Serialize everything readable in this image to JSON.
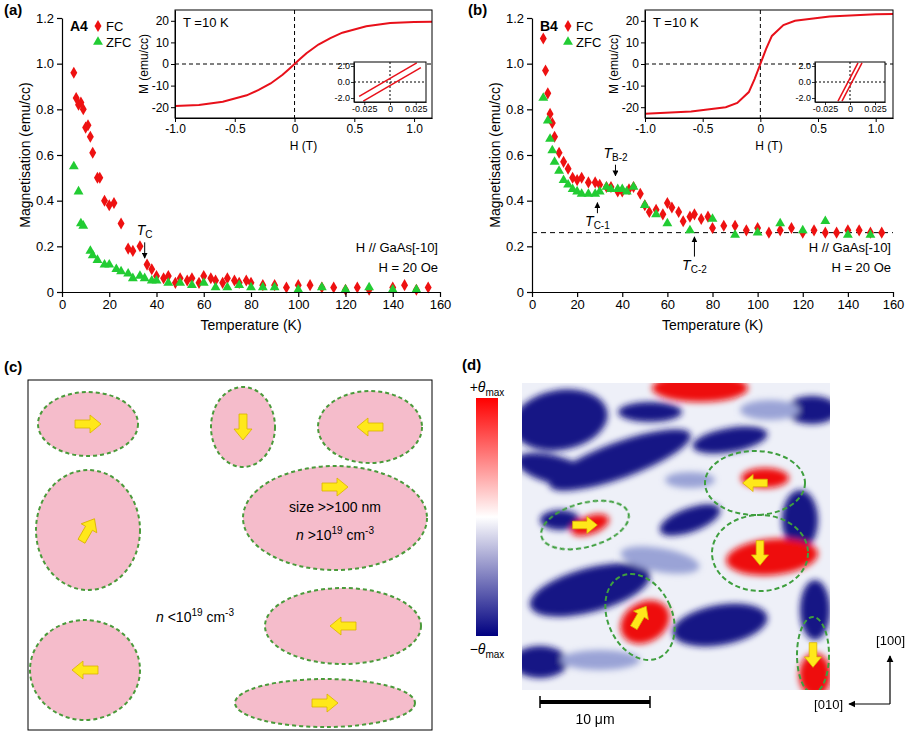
{
  "chart_data": [
    {
      "type": "scatter",
      "panel": "(a)",
      "sample": "A4",
      "x_label": "Temperature (K)",
      "y_label": "Magnetisation (emu/cc)",
      "xlim": [
        0,
        160
      ],
      "xticks": [
        0,
        20,
        40,
        60,
        80,
        100,
        120,
        140,
        160
      ],
      "ylim": [
        0,
        1.2
      ],
      "yticks": [
        0,
        0.2,
        0.4,
        0.6,
        0.8,
        {
          "value": 1,
          "label": "1.0"
        },
        1.2
      ],
      "legend": "top-left",
      "series": [
        {
          "name": "FC",
          "color": "#ee1111",
          "marker": "diamond",
          "x": [
            5,
            6,
            7,
            8,
            9,
            10,
            11,
            12,
            13,
            15,
            16,
            18,
            20,
            22,
            25,
            28,
            30,
            33,
            36,
            38,
            40,
            43,
            45,
            48,
            50,
            53,
            55,
            58,
            60,
            63,
            65,
            68,
            70,
            73,
            75,
            78,
            80,
            85,
            90,
            95,
            100,
            105,
            110,
            115,
            120,
            125,
            130,
            140,
            145,
            150,
            155
          ],
          "values": [
            0.96,
            0.85,
            0.82,
            0.83,
            0.8,
            0.72,
            0.73,
            0.68,
            0.61,
            0.5,
            0.5,
            0.4,
            0.38,
            0.39,
            0.3,
            0.19,
            0.18,
            0.2,
            0.12,
            0.1,
            0.07,
            0.06,
            0.07,
            0.04,
            0.06,
            0.05,
            0.06,
            0.04,
            0.07,
            0.06,
            0.05,
            0.04,
            0.06,
            0.05,
            0.04,
            0.05,
            0.04,
            0.03,
            0.03,
            0.02,
            0.03,
            0.03,
            0.02,
            0.02,
            0.01,
            0.02,
            0.01,
            0.02,
            0.03,
            0.01,
            0.02
          ]
        },
        {
          "name": "ZFC",
          "color": "#22cc33",
          "marker": "triangle",
          "x": [
            5,
            7,
            8,
            9,
            12,
            13,
            15,
            18,
            20,
            23,
            25,
            28,
            30,
            33,
            35,
            38,
            40,
            45,
            50,
            55,
            60,
            65,
            70,
            75,
            80,
            85,
            90,
            100,
            110,
            120,
            130,
            140,
            150
          ],
          "values": [
            0.55,
            0.44,
            0.3,
            0.29,
            0.18,
            0.16,
            0.14,
            0.12,
            0.12,
            0.1,
            0.09,
            0.08,
            0.06,
            0.07,
            0.06,
            0.05,
            0.05,
            0.04,
            0.04,
            0.03,
            0.04,
            0.02,
            0.02,
            0.03,
            0.02,
            0.02,
            0.02,
            0.01,
            0.02,
            0.01,
            0.02,
            0.01,
            0.01
          ]
        }
      ],
      "annotations": [
        {
          "text": "T",
          "subscript": "C",
          "x": 35,
          "y": 0.14,
          "label_y": 0.27
        }
      ],
      "conditions": [
        "H // GaAs[-10]",
        "H = 20 Oe"
      ]
    },
    {
      "type": "line",
      "title": "T =10 K",
      "x_label": "H (T)",
      "y_label": "M (emu/cc)",
      "xlim": [
        -1,
        1.15
      ],
      "xticks": [
        {
          "value": -1,
          "label": "-1.0"
        },
        -0.5,
        0,
        0.5,
        {
          "value": 1,
          "label": "1.0"
        }
      ],
      "ylim": [
        -25,
        25
      ],
      "yticks": [
        -20,
        -10,
        0,
        10,
        20
      ],
      "color": "#e8101a",
      "x": [
        -1,
        -0.8,
        -0.6,
        -0.4,
        -0.3,
        -0.2,
        -0.1,
        -0.05,
        0,
        0.05,
        0.1,
        0.2,
        0.3,
        0.4,
        0.6,
        0.8,
        1,
        1.15
      ],
      "values": [
        -19.5,
        -19,
        -17.5,
        -14.5,
        -12,
        -9,
        -5,
        -2.5,
        0,
        2.5,
        5,
        9,
        12,
        14.5,
        17.5,
        19,
        19.5,
        19.6
      ]
    },
    {
      "type": "line",
      "xlim": [
        -0.035,
        0.035
      ],
      "xticks": [
        -0.025,
        0,
        0.025
      ],
      "ylim": [
        -2.5,
        2.5
      ],
      "yticks": [
        {
          "value": -2,
          "label": "-2.0"
        },
        {
          "value": 0,
          "label": "0.0"
        },
        {
          "value": 2,
          "label": "2.0"
        }
      ],
      "color": "#e8101a",
      "series": [
        {
          "x": [
            -0.03,
            0.026
          ],
          "values": [
            -1.8,
            2.4
          ]
        },
        {
          "x": [
            -0.026,
            0.03
          ],
          "values": [
            -2.4,
            1.8
          ]
        }
      ]
    },
    {
      "type": "scatter",
      "panel": "(b)",
      "sample": "B4",
      "x_label": "Temperature (K)",
      "y_label": "Magnetisation (emu/cc)",
      "xlim": [
        0,
        160
      ],
      "xticks": [
        0,
        20,
        40,
        60,
        80,
        100,
        120,
        140,
        160
      ],
      "ylim": [
        0,
        1.2
      ],
      "yticks": [
        0,
        0.2,
        0.4,
        0.6,
        0.8,
        {
          "value": 1,
          "label": "1.0"
        },
        1.2
      ],
      "legend": "top-left",
      "reference_line": 0.26,
      "series": [
        {
          "name": "FC",
          "color": "#ee1111",
          "marker": "diamond",
          "x": [
            5,
            6,
            7,
            8,
            9,
            10,
            12,
            14,
            16,
            18,
            20,
            22,
            25,
            28,
            30,
            33,
            35,
            38,
            40,
            43,
            45,
            48,
            50,
            52,
            55,
            58,
            60,
            62,
            65,
            67,
            70,
            72,
            75,
            78,
            80,
            85,
            90,
            95,
            100,
            105,
            110,
            115,
            120,
            125,
            130,
            135,
            140,
            145,
            150,
            155
          ],
          "values": [
            1.11,
            0.97,
            0.87,
            0.78,
            0.74,
            0.68,
            0.61,
            0.57,
            0.54,
            0.5,
            0.49,
            0.5,
            0.48,
            0.48,
            0.47,
            0.46,
            0.46,
            0.44,
            0.44,
            0.45,
            0.46,
            0.43,
            0.38,
            0.35,
            0.36,
            0.34,
            0.39,
            0.37,
            0.35,
            0.31,
            0.33,
            0.34,
            0.32,
            0.33,
            0.28,
            0.29,
            0.29,
            0.27,
            0.28,
            0.26,
            0.27,
            0.28,
            0.26,
            0.27,
            0.26,
            0.26,
            0.27,
            0.27,
            0.26,
            0.26
          ]
        },
        {
          "name": "ZFC",
          "color": "#22cc33",
          "marker": "triangle",
          "x": [
            5,
            7,
            8,
            9,
            10,
            12,
            14,
            16,
            18,
            20,
            22,
            25,
            28,
            30,
            33,
            35,
            38,
            40,
            42,
            45,
            50,
            55,
            60,
            70,
            80,
            90,
            100,
            110,
            120,
            130,
            140,
            150
          ],
          "values": [
            0.85,
            0.75,
            0.67,
            0.62,
            0.57,
            0.53,
            0.49,
            0.47,
            0.45,
            0.44,
            0.43,
            0.43,
            0.43,
            0.44,
            0.46,
            0.45,
            0.45,
            0.45,
            0.44,
            0.46,
            0.38,
            0.34,
            0.3,
            0.27,
            0.32,
            0.25,
            0.26,
            0.3,
            0.27,
            0.31,
            0.25,
            0.25
          ]
        }
      ],
      "annotations": [
        {
          "text": "T",
          "subscript": "B-2",
          "x": 37,
          "y": 0.5,
          "label_y": 0.61
        },
        {
          "text": "T",
          "subscript": "C-1",
          "x": 29,
          "y": 0.4,
          "label_y": 0.31
        },
        {
          "text": "T",
          "subscript": "C-2",
          "x": 72,
          "y": 0.25,
          "label_y": 0.12
        }
      ],
      "conditions": [
        "H // GaAs[-10]",
        "H = 20 Oe"
      ]
    },
    {
      "type": "line",
      "title": "T =10 K",
      "x_label": "H (T)",
      "y_label": "M (emu/cc)",
      "xlim": [
        -1,
        1.15
      ],
      "xticks": [
        {
          "value": -1,
          "label": "-1.0"
        },
        -0.5,
        0,
        0.5,
        {
          "value": 1,
          "label": "1.0"
        }
      ],
      "ylim": [
        -25,
        25
      ],
      "yticks": [
        -20,
        -10,
        0,
        10,
        20
      ],
      "color": "#e8101a",
      "x": [
        -1,
        -0.6,
        -0.3,
        -0.2,
        -0.1,
        -0.05,
        0,
        0.05,
        0.1,
        0.2,
        0.3,
        0.6,
        1,
        1.15
      ],
      "values": [
        -23,
        -22,
        -20,
        -18,
        -13,
        -7,
        0,
        7,
        13,
        18,
        20,
        22,
        23,
        23.2
      ]
    },
    {
      "type": "line",
      "xlim": [
        -0.035,
        0.035
      ],
      "xticks": [
        -0.025,
        0,
        0.025
      ],
      "ylim": [
        -2.5,
        2.5
      ],
      "yticks": [
        {
          "value": -2,
          "label": "-2.0"
        },
        {
          "value": 0,
          "label": "0.0"
        },
        {
          "value": 2,
          "label": "2.0"
        }
      ],
      "color": "#e8101a",
      "series": [
        {
          "x": [
            -0.012,
            0.008
          ],
          "values": [
            -2.4,
            2.4
          ]
        },
        {
          "x": [
            -0.008,
            0.012
          ],
          "values": [
            -2.4,
            2.4
          ]
        }
      ]
    }
  ],
  "diagram": {
    "panel": "(c)",
    "domain_size": "size >>100 nm",
    "inside_density": [
      {
        "text": "n",
        "italic": true
      },
      {
        "text": " >10"
      },
      {
        "text": "19",
        "sup": true
      },
      {
        "text": " cm"
      },
      {
        "text": "-3",
        "sup": true
      }
    ],
    "outside_density": [
      {
        "text": "n",
        "italic": true
      },
      {
        "text": " <10"
      },
      {
        "text": "19",
        "sup": true
      },
      {
        "text": " cm"
      },
      {
        "text": "-3",
        "sup": true
      }
    ]
  },
  "image": {
    "panel": "(d)",
    "colorbar_max": [
      {
        "text": "+"
      },
      {
        "text": "θ",
        "italic": true
      },
      {
        "text": "max",
        "sub": true
      }
    ],
    "colorbar_min": [
      {
        "text": "−"
      },
      {
        "text": "θ",
        "italic": true
      },
      {
        "text": "max",
        "sub": true
      }
    ],
    "scale_bar": "10 μm",
    "axes": [
      "[100]",
      "[010]"
    ]
  }
}
